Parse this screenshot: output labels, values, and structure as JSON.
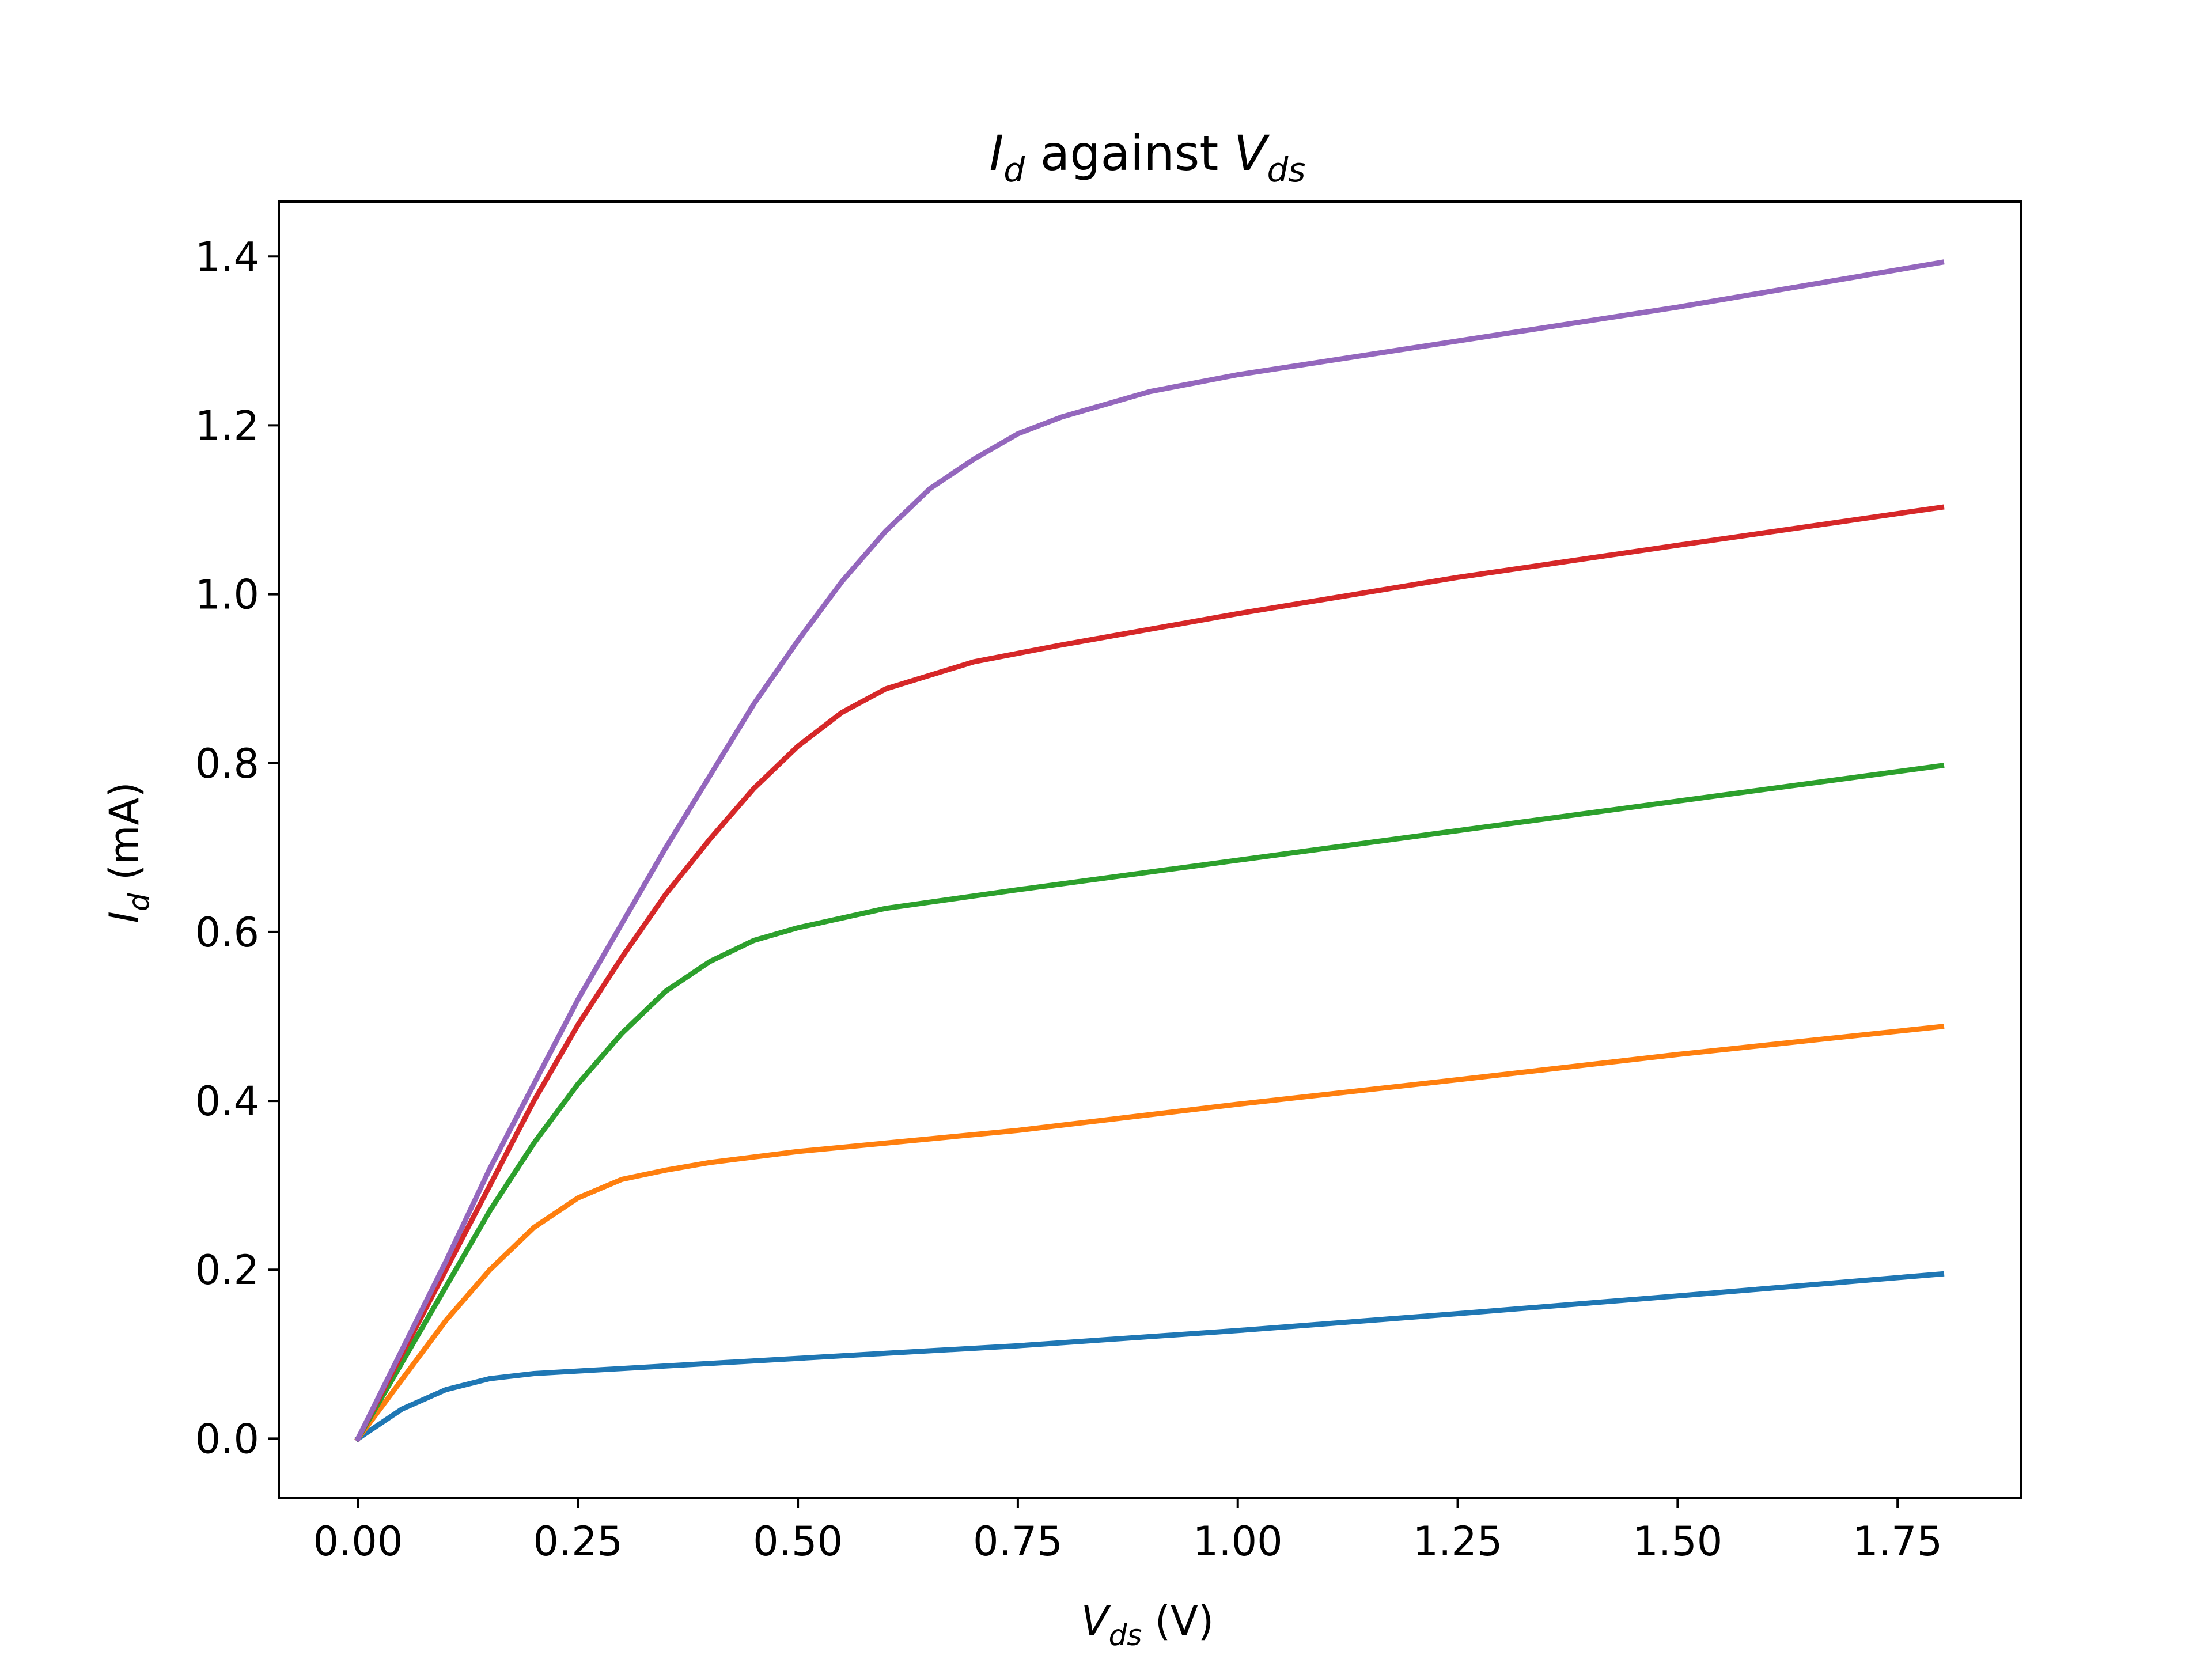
{
  "chart_data": {
    "type": "line",
    "title": {
      "main": "I",
      "main_sub": "d",
      "mid": " against ",
      "second": "V",
      "second_sub": "ds"
    },
    "xlabel": {
      "var": "V",
      "sub": "ds",
      "unit": " (V)"
    },
    "ylabel": {
      "var": "I",
      "sub": "d",
      "unit": " (mA)"
    },
    "xlim": [
      -0.09,
      1.89
    ],
    "ylim": [
      -0.07,
      1.465
    ],
    "xticks": [
      "0.00",
      "0.25",
      "0.50",
      "0.75",
      "1.00",
      "1.25",
      "1.50",
      "1.75"
    ],
    "yticks": [
      "0.0",
      "0.2",
      "0.4",
      "0.6",
      "0.8",
      "1.0",
      "1.2",
      "1.4"
    ],
    "grid": false,
    "legend": "none",
    "series": [
      {
        "color": "#1f77b4",
        "x": [
          0,
          0.05,
          0.1,
          0.15,
          0.2,
          0.25,
          0.3,
          0.4,
          0.5,
          0.6,
          0.75,
          1.0,
          1.25,
          1.5,
          1.8
        ],
        "y": [
          0,
          0.035,
          0.058,
          0.071,
          0.077,
          0.08,
          0.083,
          0.089,
          0.095,
          0.101,
          0.11,
          0.128,
          0.148,
          0.169,
          0.195
        ]
      },
      {
        "color": "#ff7f0e",
        "x": [
          0,
          0.05,
          0.1,
          0.15,
          0.2,
          0.25,
          0.3,
          0.35,
          0.4,
          0.5,
          0.6,
          0.75,
          1.0,
          1.25,
          1.5,
          1.8
        ],
        "y": [
          0,
          0.07,
          0.14,
          0.2,
          0.25,
          0.285,
          0.307,
          0.318,
          0.327,
          0.34,
          0.35,
          0.365,
          0.396,
          0.425,
          0.455,
          0.488
        ]
      },
      {
        "color": "#2ca02c",
        "x": [
          0,
          0.05,
          0.1,
          0.15,
          0.2,
          0.25,
          0.3,
          0.35,
          0.4,
          0.45,
          0.5,
          0.6,
          0.75,
          1.0,
          1.25,
          1.5,
          1.8
        ],
        "y": [
          0,
          0.09,
          0.18,
          0.27,
          0.35,
          0.42,
          0.48,
          0.53,
          0.565,
          0.59,
          0.605,
          0.628,
          0.65,
          0.685,
          0.72,
          0.755,
          0.797
        ]
      },
      {
        "color": "#d62728",
        "x": [
          0,
          0.05,
          0.1,
          0.15,
          0.2,
          0.25,
          0.3,
          0.35,
          0.4,
          0.45,
          0.5,
          0.55,
          0.6,
          0.7,
          0.8,
          1.0,
          1.25,
          1.5,
          1.8
        ],
        "y": [
          0,
          0.1,
          0.2,
          0.3,
          0.4,
          0.49,
          0.57,
          0.645,
          0.71,
          0.77,
          0.82,
          0.86,
          0.888,
          0.92,
          0.94,
          0.977,
          1.02,
          1.058,
          1.103
        ]
      },
      {
        "color": "#9467bd",
        "x": [
          0,
          0.05,
          0.1,
          0.15,
          0.2,
          0.25,
          0.3,
          0.35,
          0.4,
          0.45,
          0.5,
          0.55,
          0.6,
          0.65,
          0.7,
          0.75,
          0.8,
          0.9,
          1.0,
          1.25,
          1.5,
          1.8
        ],
        "y": [
          0,
          0.105,
          0.21,
          0.32,
          0.42,
          0.52,
          0.61,
          0.7,
          0.785,
          0.87,
          0.945,
          1.015,
          1.075,
          1.125,
          1.16,
          1.19,
          1.21,
          1.24,
          1.26,
          1.3,
          1.34,
          1.393
        ]
      }
    ]
  }
}
